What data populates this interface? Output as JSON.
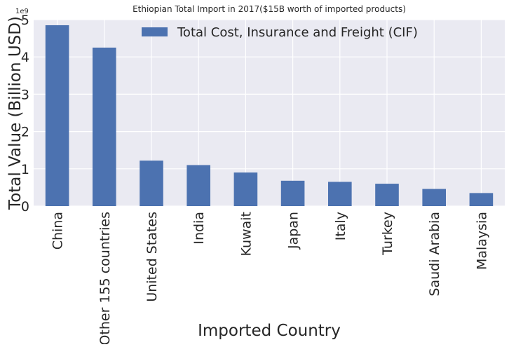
{
  "chart_data": {
    "type": "bar",
    "title": "Ethiopian Total Import in 2017($15B worth of imported products)",
    "xlabel": "Imported Country",
    "ylabel": "Total Value (Billion USD)",
    "y_offset_label": "1e9",
    "categories": [
      "China",
      "Other 155 countries",
      "United States",
      "India",
      "Kuwait",
      "Japan",
      "Italy",
      "Turkey",
      "Saudi Arabia",
      "Malaysia"
    ],
    "series": [
      {
        "name": "Total Cost, Insurance and Freight (CIF)",
        "color": "#4c72b0",
        "values": [
          4.85,
          4.25,
          1.22,
          1.1,
          0.9,
          0.68,
          0.65,
          0.6,
          0.46,
          0.35
        ]
      }
    ],
    "ylim": [
      0,
      5
    ],
    "yticks": [
      "0",
      "1",
      "2",
      "3",
      "4",
      "5"
    ],
    "grid": true,
    "legend_position": "top-center",
    "background_color": "#eaeaf2",
    "grid_color": "#ffffff"
  }
}
